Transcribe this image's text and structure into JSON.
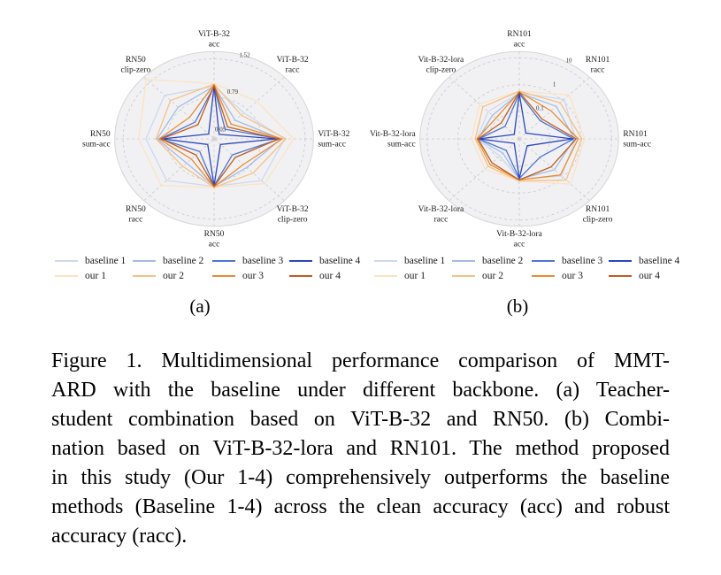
{
  "figure": {
    "subfig_a_label": "(a)",
    "subfig_b_label": "(b)"
  },
  "caption": {
    "lines": [
      "Figure 1. Multidimensional performance comparison of MMT-",
      "ARD with the baseline under different backbone. (a) Teacher-",
      "student combination based on ViT-B-32 and RN50. (b) Combi-",
      "nation based on ViT-B-32-lora and RN101. The method proposed",
      "in this study (Our 1-4) comprehensively outperforms the baseline",
      "methods (Baseline 1-4) across the clean accuracy (acc) and robust",
      "accuracy (racc)."
    ]
  },
  "colors": {
    "baseline1": "#ccd9f0",
    "baseline2": "#a3bce8",
    "baseline3": "#4f74d2",
    "baseline4": "#2a46bd",
    "our1": "#fbe3c3",
    "our2": "#f7c083",
    "our3": "#ec8c2f",
    "our4": "#bf5d1d",
    "polar_background": "#f1f1f3",
    "gridline": "#c9c9c9"
  },
  "chart_data": [
    {
      "type": "radar",
      "subfig": "(a)",
      "scale": "linear",
      "radial_domain": {
        "min": 0,
        "max": 1.66
      },
      "ticks": [
        0.05,
        0.79,
        1.52
      ],
      "tick_labels": [
        "0.05",
        "0.79",
        "1.52"
      ],
      "axes": [
        [
          "ViT-B-32",
          "acc"
        ],
        [
          "ViT-B-32",
          "racc"
        ],
        [
          "ViT-B-32",
          "sum-acc"
        ],
        [
          "ViT-B-32",
          "clip-zero"
        ],
        [
          "RN50",
          "acc"
        ],
        [
          "RN50",
          "racc"
        ],
        [
          "RN50",
          "sum-acc"
        ],
        [
          "RN50",
          "clip-zero"
        ]
      ],
      "series": [
        {
          "name": "baseline 1",
          "color": "#ccd9f0",
          "values": [
            1.0,
            0.7,
            1.18,
            1.12,
            0.9,
            1.12,
            1.14,
            1.17
          ]
        },
        {
          "name": "baseline 2",
          "color": "#a3bce8",
          "values": [
            1.0,
            0.5,
            1.12,
            0.77,
            0.9,
            0.65,
            0.95,
            0.85
          ]
        },
        {
          "name": "baseline 3",
          "color": "#4f74d2",
          "values": [
            1.0,
            0.26,
            1.1,
            0.43,
            0.89,
            0.34,
            0.9,
            0.45
          ]
        },
        {
          "name": "baseline 4",
          "color": "#2a46bd",
          "values": [
            1.0,
            0.12,
            1.05,
            0.15,
            0.89,
            0.15,
            0.87,
            0.13
          ]
        },
        {
          "name": "our 1",
          "color": "#fbe3c3",
          "values": [
            1.05,
            1.01,
            1.33,
            1.2,
            0.92,
            1.25,
            1.26,
            1.6
          ]
        },
        {
          "name": "our 2",
          "color": "#f7c083",
          "values": [
            1.04,
            0.64,
            1.2,
            0.92,
            0.92,
            0.74,
            0.97,
            1.03
          ]
        },
        {
          "name": "our 3",
          "color": "#ec8c2f",
          "values": [
            1.03,
            0.4,
            1.14,
            0.69,
            0.91,
            0.54,
            0.92,
            0.58
          ]
        },
        {
          "name": "our 4",
          "color": "#bf5d1d",
          "values": [
            1.01,
            0.32,
            1.08,
            0.5,
            0.9,
            0.43,
            0.88,
            0.38
          ]
        }
      ]
    },
    {
      "type": "radar",
      "subfig": "(b)",
      "scale": "log",
      "radial_domain": {
        "min": 0.01,
        "max": 17
      },
      "ticks": [
        0.1,
        1,
        10
      ],
      "tick_labels": [
        "0.1",
        "1",
        "10"
      ],
      "axes": [
        [
          "RN101",
          "acc"
        ],
        [
          "RN101",
          "racc"
        ],
        [
          "RN101",
          "sum-acc"
        ],
        [
          "RN101",
          "clip-zero"
        ],
        [
          "Vit-B-32-lora",
          "acc"
        ],
        [
          "Vit-B-32-lora",
          "racc"
        ],
        [
          "Vit-B-32-lora",
          "sum-acc"
        ],
        [
          "Vit-B-32-lora",
          "clip-zero"
        ]
      ],
      "series": [
        {
          "name": "baseline 1",
          "color": "#ccd9f0",
          "values": [
            0.5,
            1.16,
            0.67,
            0.88,
            0.31,
            0.079,
            0.24,
            0.27
          ]
        },
        {
          "name": "baseline 2",
          "color": "#a3bce8",
          "values": [
            0.5,
            0.5,
            0.62,
            0.41,
            0.31,
            0.056,
            0.22,
            0.17
          ]
        },
        {
          "name": "baseline 3",
          "color": "#4f74d2",
          "values": [
            0.47,
            0.09,
            0.58,
            0.09,
            0.29,
            0.04,
            0.21,
            0.045
          ]
        },
        {
          "name": "baseline 4",
          "color": "#2a46bd",
          "values": [
            0.47,
            0.02,
            0.54,
            0.023,
            0.29,
            0.017,
            0.21,
            0.017
          ]
        },
        {
          "name": "our 1",
          "color": "#fbe3c3",
          "values": [
            0.58,
            2.0,
            1.33,
            2.3,
            0.36,
            0.38,
            0.36,
            0.67
          ]
        },
        {
          "name": "our 2",
          "color": "#f7c083",
          "values": [
            0.58,
            0.77,
            1.08,
            1.42,
            0.36,
            0.27,
            0.27,
            0.47
          ]
        },
        {
          "name": "our 3",
          "color": "#ec8c2f",
          "values": [
            0.54,
            0.29,
            0.82,
            0.77,
            0.33,
            0.22,
            0.24,
            0.12
          ]
        },
        {
          "name": "our 4",
          "color": "#bf5d1d",
          "values": [
            0.54,
            0.11,
            0.71,
            0.29,
            0.33,
            0.18,
            0.22,
            0.068
          ]
        }
      ]
    }
  ]
}
